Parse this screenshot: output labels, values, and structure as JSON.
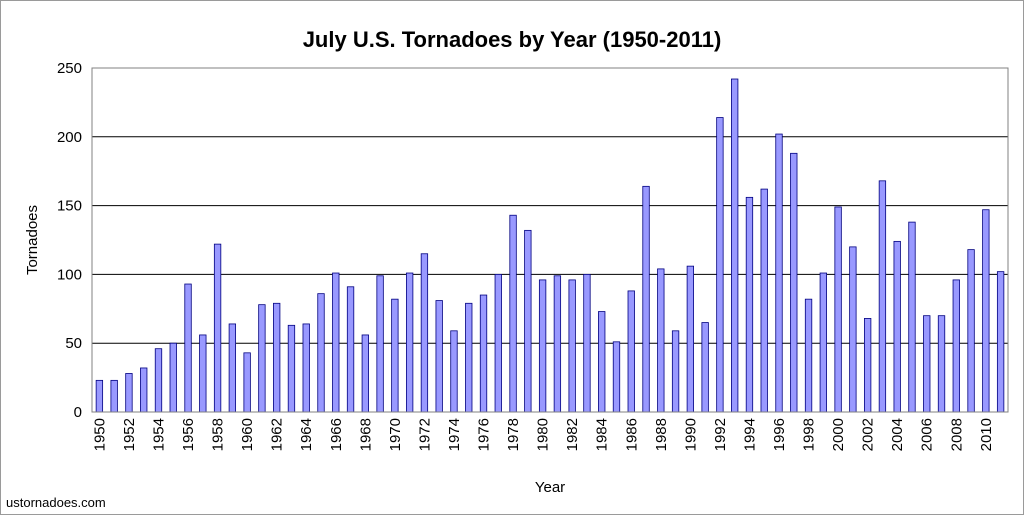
{
  "source_credit": "ustornadoes.com",
  "colors": {
    "bar_fill": "#9999ff",
    "bar_stroke": "#000080",
    "gridline": "#000000",
    "plot_border": "#808080"
  },
  "chart_data": {
    "type": "bar",
    "title": "July U.S. Tornadoes by Year (1950-2011)",
    "xlabel": "Year",
    "ylabel": "Tornadoes",
    "ylim": [
      0,
      250
    ],
    "yticks": [
      0,
      50,
      100,
      150,
      200,
      250
    ],
    "grid": "horizontal",
    "legend": "none",
    "x_tick_labels": [
      "1950",
      "1952",
      "1954",
      "1956",
      "1958",
      "1960",
      "1962",
      "1964",
      "1966",
      "1968",
      "1970",
      "1972",
      "1974",
      "1976",
      "1978",
      "1980",
      "1982",
      "1984",
      "1986",
      "1988",
      "1990",
      "1992",
      "1994",
      "1996",
      "1998",
      "2000",
      "2002",
      "2004",
      "2006",
      "2008",
      "2010"
    ],
    "categories": [
      "1950",
      "1951",
      "1952",
      "1953",
      "1954",
      "1955",
      "1956",
      "1957",
      "1958",
      "1959",
      "1960",
      "1961",
      "1962",
      "1963",
      "1964",
      "1965",
      "1966",
      "1967",
      "1968",
      "1969",
      "1970",
      "1971",
      "1972",
      "1973",
      "1974",
      "1975",
      "1976",
      "1977",
      "1978",
      "1979",
      "1980",
      "1981",
      "1982",
      "1983",
      "1984",
      "1985",
      "1986",
      "1987",
      "1988",
      "1989",
      "1990",
      "1991",
      "1992",
      "1993",
      "1994",
      "1995",
      "1996",
      "1997",
      "1998",
      "1999",
      "2000",
      "2001",
      "2002",
      "2003",
      "2004",
      "2005",
      "2006",
      "2007",
      "2008",
      "2009",
      "2010",
      "2011"
    ],
    "values": [
      23,
      23,
      28,
      32,
      46,
      50,
      93,
      56,
      122,
      64,
      43,
      78,
      79,
      63,
      64,
      86,
      101,
      91,
      56,
      99,
      82,
      101,
      115,
      81,
      59,
      79,
      85,
      100,
      143,
      132,
      96,
      99,
      96,
      100,
      73,
      51,
      88,
      164,
      104,
      59,
      106,
      65,
      214,
      242,
      156,
      162,
      202,
      188,
      82,
      101,
      149,
      120,
      68,
      168,
      124,
      138,
      70,
      70,
      96,
      118,
      147,
      102
    ]
  }
}
